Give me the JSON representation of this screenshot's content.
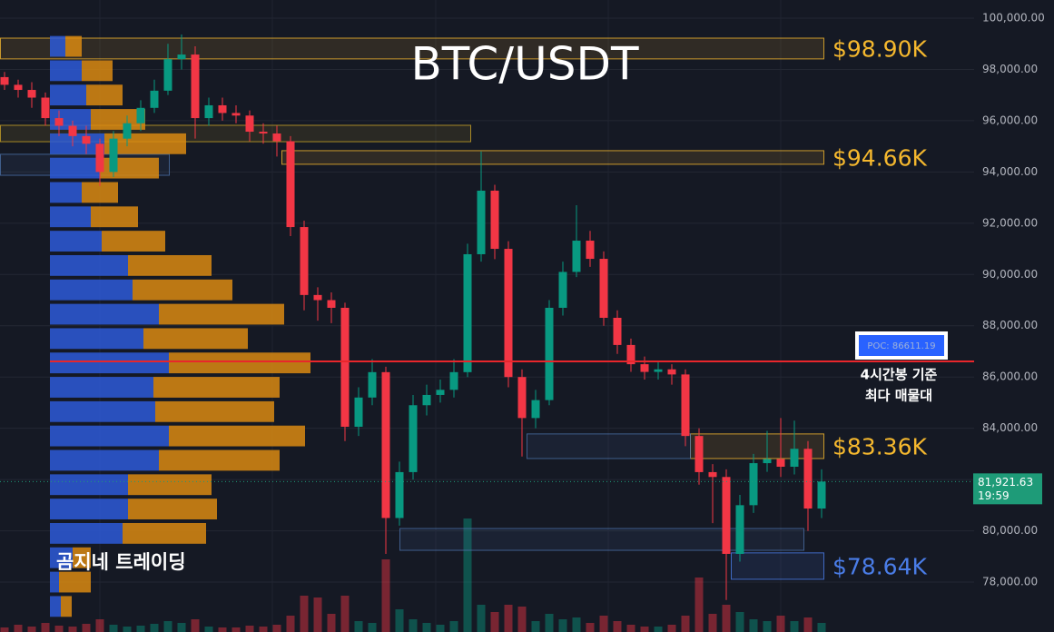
{
  "chart_data": {
    "type": "candlestick",
    "title": "BTC/USDT",
    "watermark": "곰지네 트레이딩",
    "ylim": [
      76053,
      100708
    ],
    "yticks": [
      {
        "value": 100000,
        "label": "100,000.00"
      },
      {
        "value": 98000,
        "label": "98,000.00"
      },
      {
        "value": 96000,
        "label": "96,000.00"
      },
      {
        "value": 94000,
        "label": "94,000.00"
      },
      {
        "value": 92000,
        "label": "92,000.00"
      },
      {
        "value": 90000,
        "label": "90,000.00"
      },
      {
        "value": 88000,
        "label": "88,000.00"
      },
      {
        "value": 86000,
        "label": "86,000.00"
      },
      {
        "value": 84000,
        "label": "84,000.00"
      },
      {
        "value": 82000,
        "label": "82,000.00"
      },
      {
        "value": 80000,
        "label": "80,000.00"
      },
      {
        "value": 78000,
        "label": "78,000.00"
      }
    ],
    "grid": true,
    "up_color": "#089981",
    "down_color": "#f23645",
    "open": [
      97700,
      97400,
      97200,
      96900,
      96100,
      95800,
      95400,
      95100,
      94000,
      95300,
      95900,
      96500,
      97170,
      98400,
      98580,
      96100,
      96600,
      96300,
      96200,
      95570,
      95500,
      95200,
      91850,
      89200,
      89000,
      88700,
      84060,
      85200,
      86190,
      80500,
      82290,
      84900,
      85300,
      85500,
      86190,
      90790,
      93270,
      91000,
      86000,
      84400,
      85100,
      88700,
      90100,
      91320,
      90610,
      88310,
      87250,
      86500,
      86200,
      86300,
      86100,
      83700,
      82290,
      82100,
      79100,
      81000,
      82640,
      82800,
      82500,
      83200,
      80870
    ],
    "high": [
      97900,
      97600,
      97500,
      97100,
      96400,
      96000,
      95800,
      95300,
      95600,
      96200,
      96800,
      97600,
      99000,
      99360,
      98900,
      96900,
      96900,
      96600,
      96400,
      95900,
      95800,
      95400,
      92100,
      89500,
      89300,
      88900,
      85600,
      86700,
      86400,
      82700,
      85300,
      85700,
      85900,
      86700,
      91200,
      94800,
      93500,
      91300,
      86300,
      85500,
      89000,
      90500,
      92700,
      91700,
      90900,
      88600,
      87500,
      86800,
      86600,
      86500,
      86300,
      84000,
      82600,
      82400,
      81400,
      83000,
      83900,
      84400,
      84300,
      83500,
      82400
    ],
    "low": [
      97200,
      96900,
      96500,
      95800,
      95400,
      95000,
      94700,
      93450,
      93800,
      95000,
      95600,
      96300,
      97000,
      98000,
      95300,
      95800,
      96000,
      95900,
      95200,
      95100,
      94600,
      91500,
      88600,
      88200,
      88100,
      83500,
      83700,
      84900,
      79100,
      80200,
      82000,
      84500,
      85000,
      85200,
      86000,
      90500,
      90600,
      85600,
      82900,
      84000,
      84900,
      88400,
      89900,
      90300,
      88000,
      86900,
      86200,
      85900,
      85900,
      85700,
      83300,
      81800,
      80300,
      77300,
      78800,
      80700,
      82300,
      82100,
      82200,
      80000,
      80500
    ],
    "close": [
      97400,
      97200,
      96900,
      96100,
      95800,
      95400,
      95100,
      94000,
      95300,
      95900,
      96500,
      97170,
      98400,
      98580,
      96100,
      96600,
      96300,
      96200,
      95570,
      95500,
      95200,
      91850,
      89200,
      89000,
      88700,
      84060,
      85200,
      86190,
      80500,
      82290,
      84900,
      85300,
      85500,
      86190,
      90790,
      93270,
      91000,
      86000,
      84400,
      85100,
      88700,
      90100,
      91320,
      90610,
      88310,
      87250,
      86500,
      86200,
      86300,
      86100,
      83700,
      82290,
      82100,
      79100,
      81000,
      82640,
      82800,
      82500,
      83200,
      80870,
      81921.63
    ],
    "volume": [
      5,
      8,
      6,
      10,
      7,
      6,
      9,
      14,
      8,
      6,
      7,
      9,
      12,
      10,
      14,
      6,
      5,
      5,
      7,
      6,
      8,
      18,
      40,
      38,
      20,
      40,
      12,
      10,
      80,
      25,
      14,
      10,
      8,
      12,
      125,
      30,
      22,
      30,
      28,
      12,
      20,
      14,
      16,
      10,
      18,
      12,
      8,
      6,
      6,
      8,
      18,
      60,
      20,
      30,
      22,
      14,
      12,
      18,
      12,
      16,
      10
    ],
    "volume_profile": {
      "levels": [
        98900,
        97950,
        97000,
        96050,
        95100,
        94150,
        93200,
        92250,
        91300,
        90350,
        89400,
        88450,
        87500,
        86550,
        85600,
        84650,
        83700,
        82750,
        81800,
        80850,
        79900,
        78950,
        78000,
        77050
      ],
      "buy": [
        17,
        35,
        40,
        45,
        60,
        55,
        35,
        45,
        57,
        86,
        91,
        120,
        103,
        131,
        114,
        116,
        131,
        120,
        86,
        86,
        80,
        25,
        10,
        12
      ],
      "sell": [
        18,
        34,
        40,
        60,
        90,
        65,
        40,
        52,
        70,
        92,
        110,
        138,
        115,
        156,
        139,
        131,
        150,
        133,
        92,
        98,
        92,
        20,
        35,
        12
      ],
      "buy_color": "#2d5bd8",
      "sell_color": "#d98a12"
    },
    "zones": [
      {
        "high": 99220,
        "low": 98410,
        "label": "$98.90K",
        "color": "#f5b82e"
      },
      {
        "high": 95820,
        "low": 95180,
        "color": "#c9a227"
      },
      {
        "high": 94830,
        "low": 94300,
        "label": "$94.66K",
        "color": "#f5b82e"
      },
      {
        "high": 94690,
        "low": 93870,
        "color": "#4a6fa5"
      },
      {
        "high": 83780,
        "low": 82820,
        "label": "$83.36K",
        "color": "#f5b82e"
      },
      {
        "high": 83780,
        "low": 82820,
        "color": "#4a6fa5"
      },
      {
        "high": 80090,
        "low": 79240,
        "color": "#4a6fa5"
      },
      {
        "high": 79140,
        "low": 78110,
        "label": "$78.64K",
        "color": "#4a7de8"
      }
    ],
    "poc": {
      "value": 86611.19,
      "label": "POC: 86611.19",
      "color": "#e8262b"
    },
    "poc_note": [
      "4시간봉 기준",
      "최다 매물대"
    ],
    "last_price": {
      "value": 81921.63,
      "label": "81,921.63",
      "time": "19:59",
      "color": "#1e9b78"
    }
  }
}
